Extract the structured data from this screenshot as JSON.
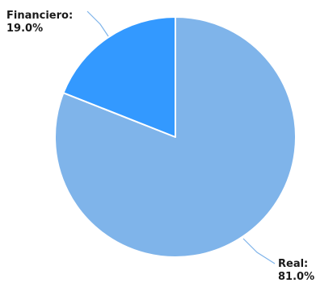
{
  "chart_data": {
    "type": "pie",
    "title": "",
    "slices": [
      {
        "label": "Real",
        "value": 81.0,
        "display": "81.0%",
        "color": "#7fb4ea"
      },
      {
        "label": "Financiero",
        "value": 19.0,
        "display": "19.0%",
        "color": "#3399ff"
      }
    ],
    "start_angle": "12 o'clock",
    "direction": "clockwise",
    "label_style": "outside labels with leader lines",
    "leader_color": "#7fb4ea",
    "slice_border_color": "#ffffff",
    "legend": "none"
  }
}
